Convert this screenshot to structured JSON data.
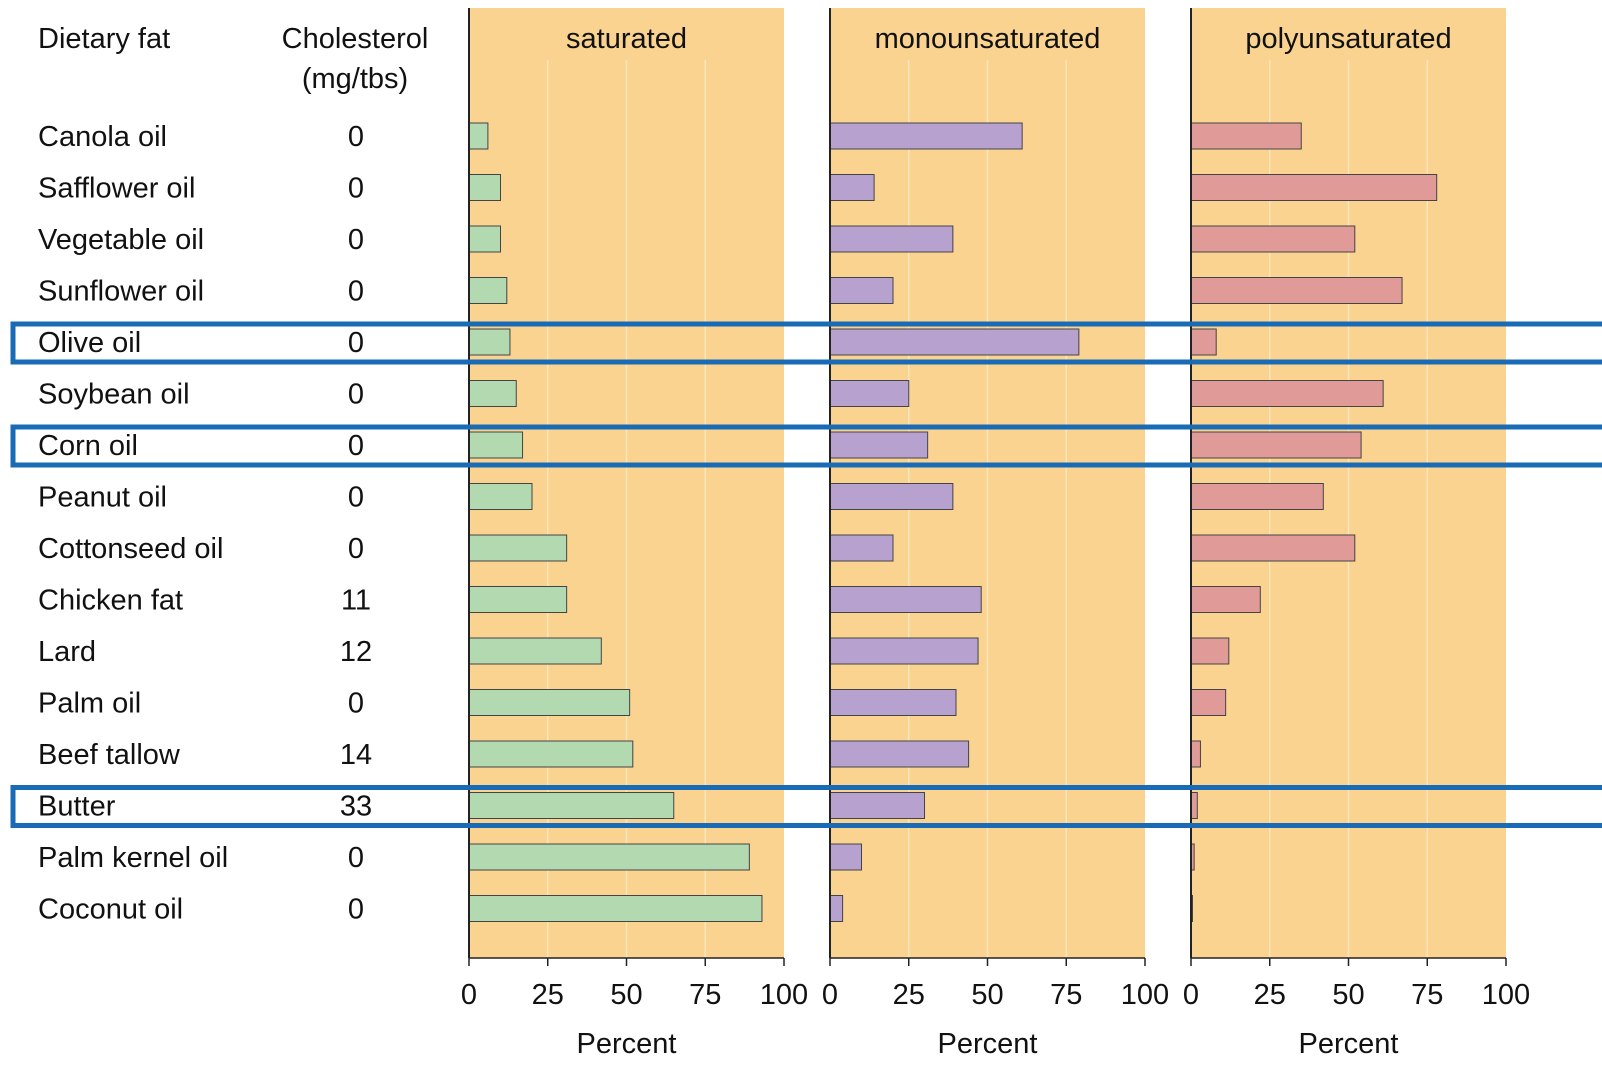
{
  "chart_data": {
    "type": "bar",
    "orientation": "horizontal",
    "headers": {
      "category": "Dietary fat",
      "cholesterol_line1": "Cholesterol",
      "cholesterol_line2": "(mg/tbs)"
    },
    "categories": [
      "Canola oil",
      "Safflower oil",
      "Vegetable oil",
      "Sunflower oil",
      "Olive oil",
      "Soybean oil",
      "Corn oil",
      "Peanut oil",
      "Cottonseed oil",
      "Chicken fat",
      "Lard",
      "Palm oil",
      "Beef tallow",
      "Butter",
      "Palm kernel oil",
      "Coconut oil"
    ],
    "cholesterol": [
      "0",
      "0",
      "0",
      "0",
      "0",
      "0",
      "0",
      "0",
      "0",
      "11",
      "12",
      "0",
      "14",
      "33",
      "0",
      "0"
    ],
    "series": [
      {
        "name": "saturated",
        "values": [
          6,
          10,
          10,
          12,
          13,
          15,
          17,
          20,
          31,
          31,
          42,
          51,
          52,
          65,
          89,
          93
        ]
      },
      {
        "name": "monounsaturated",
        "values": [
          61,
          14,
          39,
          20,
          79,
          25,
          31,
          39,
          20,
          48,
          47,
          40,
          44,
          30,
          10,
          4
        ]
      },
      {
        "name": "polyunsaturated",
        "values": [
          35,
          78,
          52,
          67,
          8,
          61,
          54,
          42,
          52,
          22,
          12,
          11,
          3,
          2,
          1,
          0
        ]
      }
    ],
    "xlabel": "Percent",
    "xlim": [
      0,
      100
    ],
    "xticks": [
      "0",
      "25",
      "50",
      "75",
      "100"
    ],
    "highlighted": [
      "Olive oil",
      "Corn oil",
      "Butter"
    ],
    "colors": {
      "panel_background": "#f9d38f",
      "saturated": "#b3d9b0",
      "monounsaturated": "#b7a2cf",
      "polyunsaturated": "#e09b98",
      "highlight_box": "#1a6bb5",
      "grid": "#fbe6bb"
    },
    "grid": true
  }
}
